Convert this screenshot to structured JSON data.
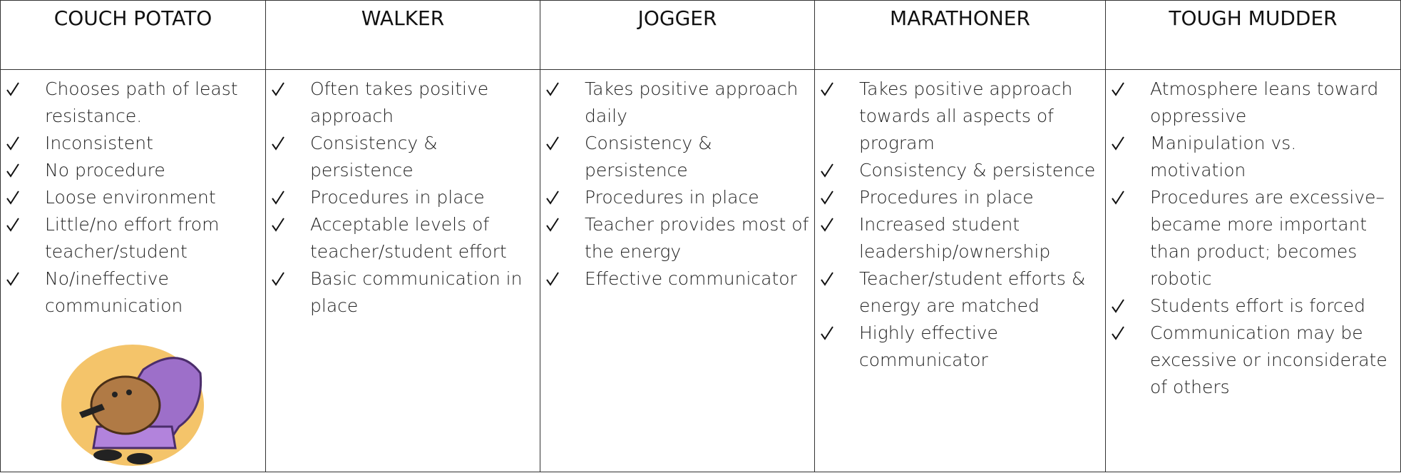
{
  "columns": [
    {
      "header": "COUCH POTATO",
      "items": [
        "Chooses path of least resistance.",
        "Inconsistent",
        "No procedure",
        "Loose environment",
        "Little/no effort from teacher/student",
        "No/ineffective communication"
      ]
    },
    {
      "header": "WALKER",
      "items": [
        "Often takes positive approach",
        "Consistency & persistence",
        "Procedures in place",
        "Acceptable levels of teacher/student effort",
        "Basic communication in place"
      ]
    },
    {
      "header": "JOGGER",
      "items": [
        "Takes positive approach daily",
        "Consistency & persistence",
        "Procedures in place",
        "Teacher provides most of the energy",
        "Effective communicator"
      ]
    },
    {
      "header": "MARATHONER",
      "items": [
        "Takes positive approach towards all aspects of program",
        "Consistency & persistence",
        "Procedures in place",
        "Increased student leadership/ownership",
        "Teacher/student efforts & energy are matched",
        "Highly effective communicator"
      ]
    },
    {
      "header": "TOUGH MUDDER",
      "items": [
        "Atmosphere leans toward oppressive",
        "Manipulation vs. motivation",
        "Procedures are excessive–became more important than product; becomes robotic",
        "Students effort is forced",
        "Communication may be excessive or inconsiderate of others"
      ]
    }
  ]
}
